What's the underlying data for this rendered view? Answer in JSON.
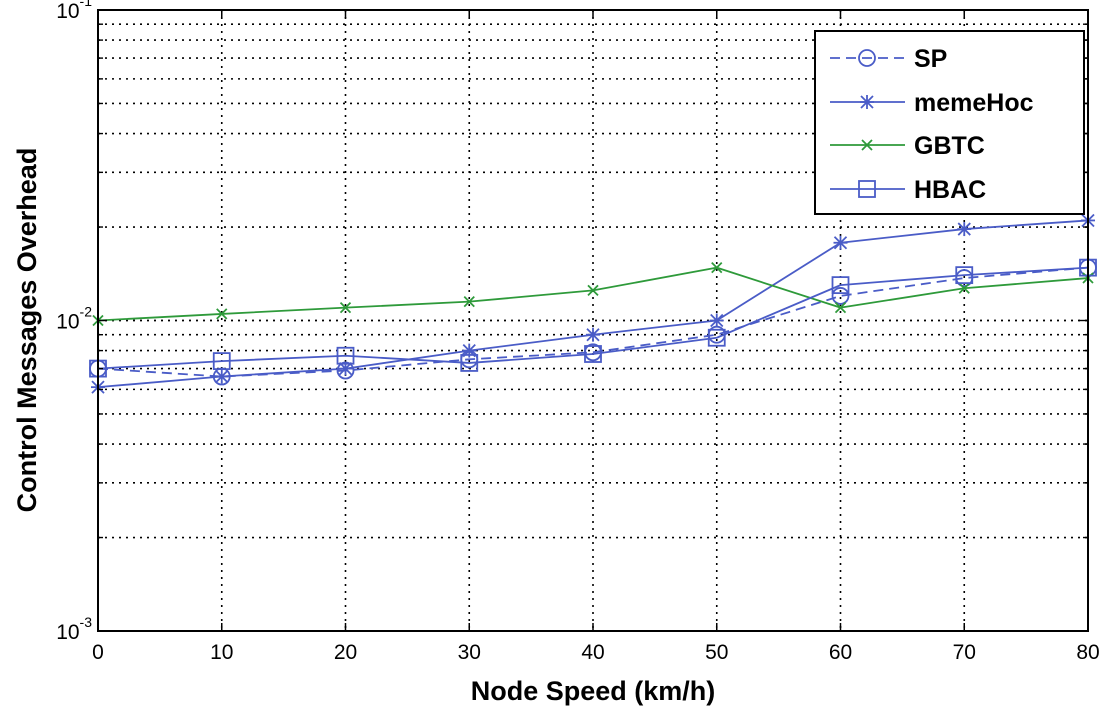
{
  "chart_data": {
    "type": "line",
    "xlabel": "Node Speed (km/h)",
    "ylabel": "Control Messages Overhead",
    "xlim": [
      0,
      80
    ],
    "ylim": [
      0.001,
      0.1
    ],
    "yscale": "log",
    "grid": true,
    "legend_position": "top-right",
    "x": [
      0,
      10,
      20,
      30,
      40,
      50,
      60,
      70,
      80
    ],
    "x_ticks": [
      "0",
      "10",
      "20",
      "30",
      "40",
      "50",
      "60",
      "70",
      "80"
    ],
    "y_ticks": [
      {
        "base": "10",
        "exponent": "-3",
        "value": 0.001
      },
      {
        "base": "10",
        "exponent": "-2",
        "value": 0.01
      },
      {
        "base": "10",
        "exponent": "-1",
        "value": 0.1
      }
    ],
    "series": [
      {
        "name": "SP",
        "color": "#4a5cc7",
        "line_style": "dashed",
        "marker": "circle",
        "values": [
          0.007,
          0.0066,
          0.0069,
          0.0075,
          0.0079,
          0.009,
          0.012,
          0.0137,
          0.0148
        ]
      },
      {
        "name": "memeHoc",
        "color": "#4a5cc7",
        "line_style": "solid",
        "marker": "asterisk",
        "values": [
          0.0061,
          0.0066,
          0.007,
          0.008,
          0.009,
          0.01,
          0.0178,
          0.0197,
          0.021
        ]
      },
      {
        "name": "GBTC",
        "color": "#2e9a3a",
        "line_style": "solid",
        "marker": "x",
        "values": [
          0.01,
          0.0105,
          0.011,
          0.0115,
          0.0125,
          0.0148,
          0.011,
          0.0127,
          0.0137
        ]
      },
      {
        "name": "HBAC",
        "color": "#4a5cc7",
        "line_style": "solid",
        "marker": "square",
        "values": [
          0.007,
          0.0074,
          0.0077,
          0.0073,
          0.0078,
          0.0088,
          0.013,
          0.014,
          0.0148
        ]
      }
    ]
  }
}
